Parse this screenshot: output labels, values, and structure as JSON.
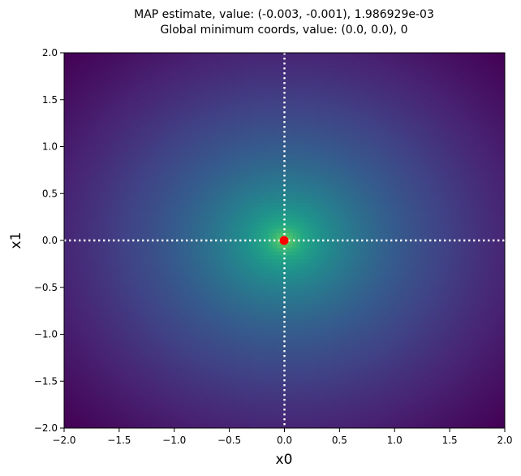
{
  "chart_data": {
    "type": "heatmap",
    "title_lines": [
      "MAP estimate, value: (-0.003, -0.001), 1.986929e-03",
      "Global minimum coords, value: (0.0, 0.0), 0"
    ],
    "xlabel": "x0",
    "ylabel": "x1",
    "xlim": [
      -2.0,
      2.0
    ],
    "ylim": [
      -2.0,
      2.0
    ],
    "xticks": [
      "−2.0",
      "−1.5",
      "−1.0",
      "−0.5",
      "0.0",
      "0.5",
      "1.0",
      "1.5",
      "2.0"
    ],
    "yticks": [
      "−2.0",
      "−1.5",
      "−1.0",
      "−0.5",
      "0.0",
      "0.5",
      "1.0",
      "1.5",
      "2.0"
    ],
    "xtick_values": [
      -2.0,
      -1.5,
      -1.0,
      -0.5,
      0.0,
      0.5,
      1.0,
      1.5,
      2.0
    ],
    "ytick_values": [
      -2.0,
      -1.5,
      -1.0,
      -0.5,
      0.0,
      0.5,
      1.0,
      1.5,
      2.0
    ],
    "colormap": "viridis",
    "grid": false,
    "surface": {
      "function": "radial distance from global minimum",
      "center": [
        0.0,
        0.0
      ],
      "low_value_color": "#fde725",
      "high_value_color": "#440154"
    },
    "map_estimate": {
      "x": -0.003,
      "y": -0.001,
      "value": 0.001986929,
      "marker_color": "#ff0000"
    },
    "global_minimum": {
      "x": 0.0,
      "y": 0.0,
      "value": 0
    },
    "crosshair": {
      "x": 0.0,
      "y": 0.0,
      "style": "dotted",
      "color": "#ffffff"
    }
  }
}
